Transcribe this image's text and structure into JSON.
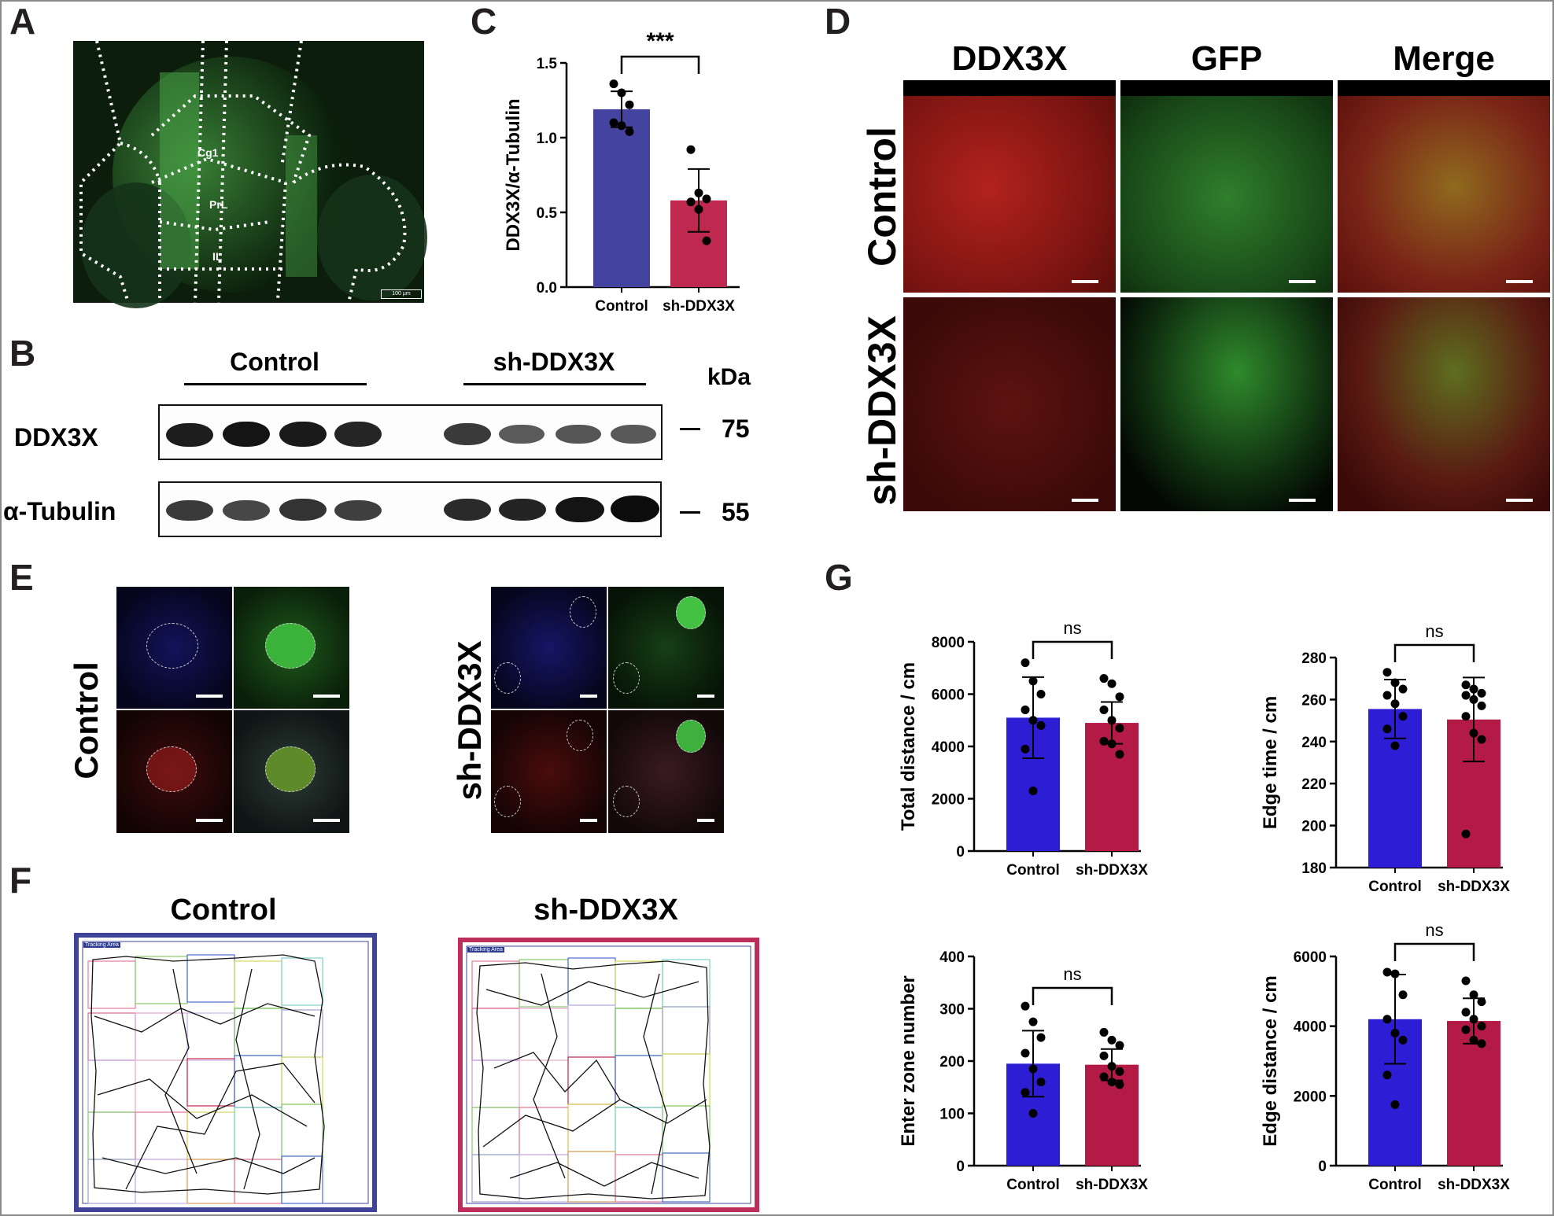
{
  "panels": {
    "A": {
      "label": "A",
      "regions": [
        "Cg1",
        "PrL",
        "IL"
      ],
      "scale_bar": "100 µm"
    },
    "B": {
      "label": "B",
      "groups": [
        "Control",
        "sh-DDX3X"
      ],
      "unit": "kDa",
      "rows": [
        {
          "name": "DDX3X",
          "marker": "75"
        },
        {
          "name": "α-Tubulin",
          "marker": "55"
        }
      ]
    },
    "C": {
      "label": "C",
      "significance": "***"
    },
    "D": {
      "label": "D",
      "columns": [
        "DDX3X",
        "GFP",
        "Merge"
      ],
      "rows": [
        "Control",
        "sh-DDX3X"
      ],
      "colors": {
        "DDX3X": "#e52521",
        "GFP": "#3aaa35",
        "Merge": "#000000"
      }
    },
    "E": {
      "label": "E",
      "groups": [
        "Control",
        "sh-DDX3X"
      ]
    },
    "F": {
      "label": "F",
      "groups": [
        "Control",
        "sh-DDX3X"
      ],
      "arena_label": "Tracking Area",
      "frame_colors": [
        "#3f4499",
        "#be2e5a"
      ]
    },
    "G": {
      "label": "G"
    }
  },
  "colors": {
    "control_bar": "#3f3fa8",
    "sh_bar": "#c0294f",
    "control_bar_G": "#2d1ed6",
    "sh_bar_G": "#b31a45"
  },
  "chart_data": [
    {
      "id": "C",
      "type": "bar",
      "categories": [
        "Control",
        "sh-DDX3X"
      ],
      "values": [
        1.19,
        0.58
      ],
      "errors": [
        0.12,
        0.21
      ],
      "points": [
        [
          1.36,
          1.3,
          1.22,
          1.1,
          1.08,
          1.04
        ],
        [
          0.92,
          0.63,
          0.59,
          0.57,
          0.52,
          0.31
        ]
      ],
      "ylabel": "DDX3X/α-Tubulin",
      "ylim": [
        0,
        1.5
      ],
      "ticks": [
        "0.0",
        "0.5",
        "1.0",
        "1.5"
      ],
      "significance": "***",
      "colors": [
        "#4444a0",
        "#c0294f"
      ]
    },
    {
      "id": "G1",
      "type": "bar",
      "categories": [
        "Control",
        "sh-DDX3X"
      ],
      "values": [
        5100,
        4900
      ],
      "errors": [
        1550,
        800
      ],
      "points": [
        [
          7200,
          6500,
          6000,
          5400,
          5000,
          4800,
          3900,
          2300
        ],
        [
          6600,
          6400,
          5900,
          5400,
          5000,
          4700,
          4200,
          4100,
          3700
        ]
      ],
      "ylabel": "Total distance / cm",
      "ylim": [
        0,
        8000
      ],
      "ticks": [
        "0",
        "2000",
        "4000",
        "6000",
        "8000"
      ],
      "significance": "ns"
    },
    {
      "id": "G2",
      "type": "bar",
      "categories": [
        "Control",
        "sh-DDX3X"
      ],
      "values": [
        255.5,
        250.5
      ],
      "errors": [
        14,
        20
      ],
      "points": [
        [
          273,
          268,
          265,
          262,
          258,
          252,
          246,
          238
        ],
        [
          267,
          265,
          263,
          262,
          260,
          257,
          252,
          244,
          241,
          196
        ]
      ],
      "ylabel": "Edge time / cm",
      "ylim": [
        180,
        280
      ],
      "ticks": [
        "180",
        "200",
        "220",
        "240",
        "260",
        "280"
      ],
      "significance": "ns"
    },
    {
      "id": "G3",
      "type": "bar",
      "categories": [
        "Control",
        "sh-DDX3X"
      ],
      "values": [
        195,
        193
      ],
      "errors": [
        63,
        30
      ],
      "points": [
        [
          305,
          275,
          245,
          215,
          185,
          160,
          140,
          100
        ],
        [
          255,
          240,
          230,
          210,
          190,
          180,
          170,
          160,
          155
        ]
      ],
      "ylabel": "Enter zone number",
      "ylim": [
        0,
        400
      ],
      "ticks": [
        "0",
        "100",
        "200",
        "300",
        "400"
      ],
      "significance": "ns"
    },
    {
      "id": "G4",
      "type": "bar",
      "categories": [
        "Control",
        "sh-DDX3X"
      ],
      "values": [
        4200,
        4150
      ],
      "errors": [
        1280,
        650
      ],
      "points": [
        [
          5550,
          5500,
          4900,
          4200,
          3800,
          3600,
          2600,
          1750
        ],
        [
          5300,
          4900,
          4700,
          4400,
          4200,
          4000,
          3900,
          3600,
          3500
        ]
      ],
      "ylabel": "Edge distance / cm",
      "ylim": [
        0,
        6000
      ],
      "ticks": [
        "0",
        "2000",
        "4000",
        "6000"
      ],
      "significance": "ns"
    }
  ]
}
